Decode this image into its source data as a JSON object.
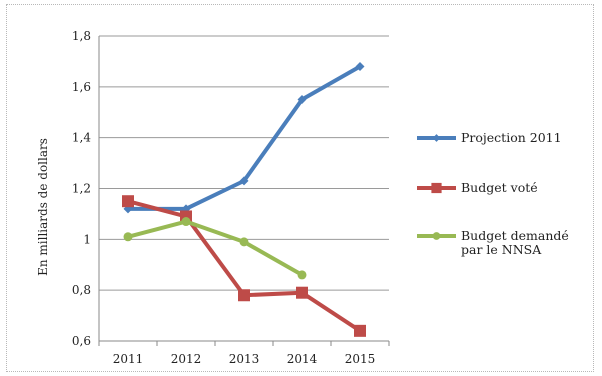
{
  "chart_data": {
    "type": "line",
    "categories": [
      "2011",
      "2012",
      "2013",
      "2014",
      "2015"
    ],
    "ylabel": "En milliards de dollars",
    "ylim": [
      0.6,
      1.8
    ],
    "yticks": [
      {
        "value": 1.8,
        "label": "1,8"
      },
      {
        "value": 1.6,
        "label": "1,6"
      },
      {
        "value": 1.4,
        "label": "1,4"
      },
      {
        "value": 1.2,
        "label": "1,2"
      },
      {
        "value": 1.0,
        "label": "1"
      },
      {
        "value": 0.8,
        "label": "0,8"
      },
      {
        "value": 0.6,
        "label": "0,6"
      }
    ],
    "grid": true,
    "legend_position": "right",
    "series": [
      {
        "name": "Projection 2011",
        "color": "#4a7ebb",
        "marker": "diamond",
        "values": [
          1.12,
          1.12,
          1.23,
          1.55,
          1.68
        ]
      },
      {
        "name": "Budget voté",
        "color": "#be4b48",
        "marker": "square",
        "values": [
          1.15,
          1.09,
          0.78,
          0.79,
          0.64
        ]
      },
      {
        "name": "Budget demandé par le NNSA",
        "name_lines": [
          "Budget demandé",
          "par le NNSA"
        ],
        "color": "#98b954",
        "marker": "circle",
        "values": [
          1.01,
          1.07,
          0.99,
          0.86,
          null
        ]
      }
    ]
  }
}
